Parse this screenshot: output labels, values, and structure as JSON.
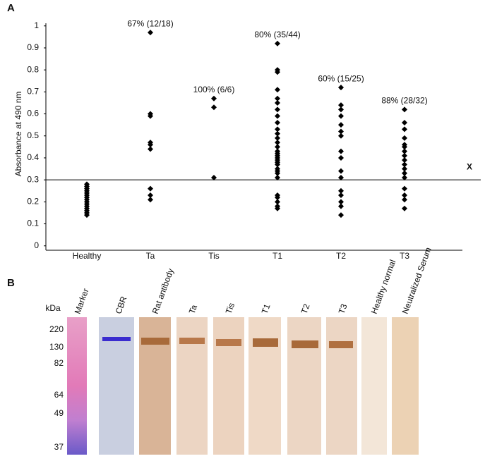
{
  "panel_a": {
    "label": "A"
  },
  "chart_data": {
    "type": "strip",
    "ylabel": "Absorbance at 490 nm",
    "categories": [
      "Healthy",
      "Ta",
      "Tis",
      "T1",
      "T2",
      "T3"
    ],
    "annotations": [
      null,
      "67% (12/18)",
      "100% (6/6)",
      "80% (35/44)",
      "60% (15/25)",
      "88% (28/32)"
    ],
    "values": [
      [
        0.28,
        0.27,
        0.26,
        0.25,
        0.24,
        0.23,
        0.22,
        0.21,
        0.2,
        0.19,
        0.18,
        0.17,
        0.16,
        0.15,
        0.14
      ],
      [
        0.97,
        0.6,
        0.59,
        0.47,
        0.46,
        0.44,
        0.26,
        0.23,
        0.21
      ],
      [
        0.67,
        0.63,
        0.31
      ],
      [
        0.92,
        0.8,
        0.79,
        0.71,
        0.67,
        0.65,
        0.62,
        0.59,
        0.56,
        0.53,
        0.51,
        0.49,
        0.47,
        0.45,
        0.43,
        0.42,
        0.41,
        0.4,
        0.39,
        0.38,
        0.37,
        0.35,
        0.34,
        0.33,
        0.31,
        0.23,
        0.22,
        0.2,
        0.18,
        0.17
      ],
      [
        0.72,
        0.64,
        0.62,
        0.59,
        0.55,
        0.52,
        0.5,
        0.43,
        0.4,
        0.34,
        0.31,
        0.25,
        0.23,
        0.2,
        0.18,
        0.14
      ],
      [
        0.62,
        0.56,
        0.53,
        0.49,
        0.46,
        0.45,
        0.43,
        0.41,
        0.39,
        0.37,
        0.35,
        0.33,
        0.31,
        0.26,
        0.23,
        0.21,
        0.17
      ]
    ],
    "color": "#000000",
    "cutoff": 0.3,
    "cutoff_label": "X",
    "ylim": [
      -0.02,
      1.01
    ],
    "yticks": [
      0,
      0.1,
      0.2,
      0.3,
      0.4,
      0.5,
      0.6,
      0.7,
      0.8,
      0.9,
      1
    ]
  },
  "panel_b": {
    "label": "B",
    "unit": "kDa",
    "marker_kda": [
      "220",
      "130",
      "82",
      "64",
      "49",
      "37"
    ],
    "lanes": [
      "Marker",
      "CBR",
      "Rat antibody",
      "Ta",
      "Tis",
      "T1",
      "T2",
      "T3",
      "Healthy normal",
      "Neutralized Serum"
    ]
  }
}
